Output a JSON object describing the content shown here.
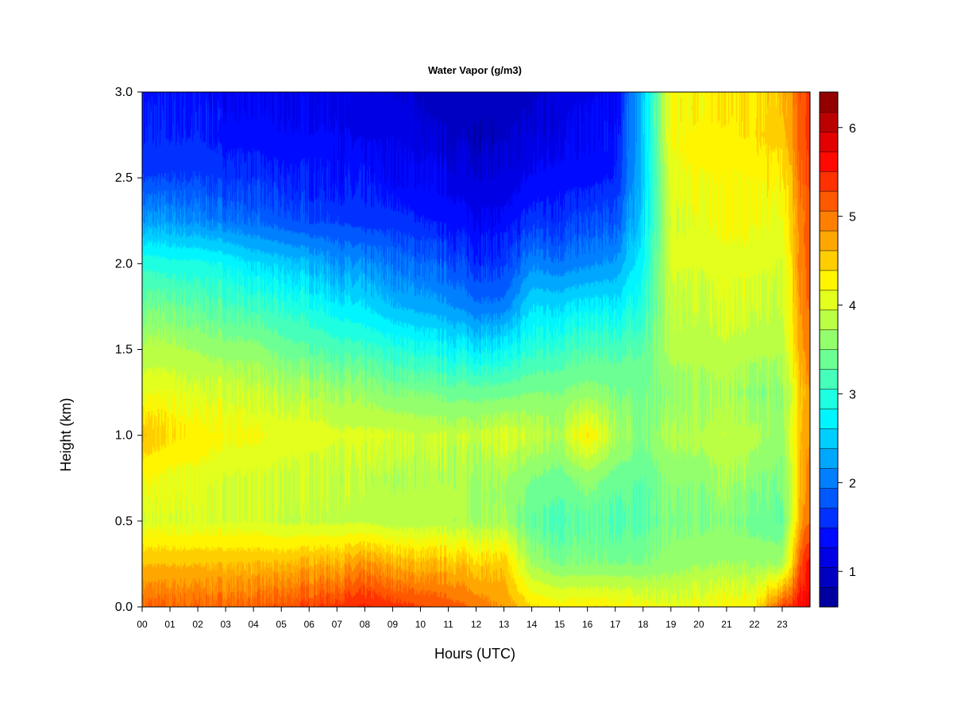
{
  "chart_data": {
    "type": "heatmap",
    "title": "Water Vapor (g/m3)",
    "xlabel": "Hours (UTC)",
    "ylabel": "Height (km)",
    "xlim": [
      0,
      24
    ],
    "ylim": [
      0,
      3
    ],
    "x_ticks": [
      "00",
      "01",
      "02",
      "03",
      "04",
      "05",
      "06",
      "07",
      "08",
      "09",
      "10",
      "11",
      "12",
      "13",
      "14",
      "15",
      "16",
      "17",
      "18",
      "19",
      "20",
      "21",
      "22",
      "23"
    ],
    "y_ticks": [
      "0.0",
      "0.5",
      "1.0",
      "1.5",
      "2.0",
      "2.5",
      "3.0"
    ],
    "colorbar": {
      "range": [
        0.6,
        6.4
      ],
      "ticks": [
        "1",
        "2",
        "3",
        "4",
        "5",
        "6"
      ],
      "levels": 26,
      "colors": [
        "#00008f",
        "#0000ff",
        "#0080ff",
        "#00ffff",
        "#80ff80",
        "#ffff00",
        "#ff8000",
        "#ff0000",
        "#800000"
      ]
    },
    "x": [
      0,
      1,
      2,
      3,
      4,
      5,
      6,
      7,
      8,
      9,
      10,
      11,
      12,
      13,
      14,
      15,
      16,
      17,
      18,
      19,
      20,
      21,
      22,
      23,
      23.8
    ],
    "y": [
      0,
      0.25,
      0.5,
      0.75,
      1.0,
      1.25,
      1.5,
      1.75,
      2.0,
      2.25,
      2.5,
      2.75,
      3.0
    ],
    "z": [
      [
        5.1,
        5.1,
        5.1,
        5.1,
        5.1,
        5.2,
        5.3,
        5.4,
        5.5,
        5.4,
        5.3,
        5.2,
        5.0,
        4.8,
        4.4,
        4.3,
        4.3,
        4.3,
        4.2,
        4.1,
        4.2,
        4.2,
        4.3,
        5.3,
        5.7
      ],
      [
        4.6,
        4.6,
        4.6,
        4.6,
        4.6,
        4.6,
        4.7,
        4.7,
        4.8,
        4.7,
        4.6,
        4.6,
        4.5,
        4.5,
        3.7,
        3.5,
        3.5,
        3.5,
        3.5,
        3.6,
        3.7,
        3.7,
        3.7,
        3.7,
        5.5
      ],
      [
        4.0,
        4.0,
        4.0,
        4.0,
        4.0,
        3.9,
        3.9,
        3.9,
        3.9,
        3.8,
        3.8,
        3.8,
        3.7,
        3.7,
        3.3,
        3.2,
        3.3,
        3.2,
        3.3,
        3.5,
        3.5,
        3.5,
        3.4,
        3.3,
        5.0
      ],
      [
        4.2,
        4.1,
        4.1,
        4.0,
        4.0,
        3.9,
        3.9,
        3.9,
        3.8,
        3.8,
        3.8,
        3.8,
        3.7,
        3.7,
        3.5,
        3.4,
        3.6,
        3.4,
        3.3,
        3.6,
        3.6,
        3.7,
        3.6,
        3.5,
        4.8
      ],
      [
        4.6,
        4.4,
        4.3,
        4.2,
        4.2,
        4.1,
        4.1,
        4.0,
        4.0,
        4.0,
        3.9,
        3.9,
        3.9,
        4.0,
        3.9,
        3.8,
        4.3,
        3.8,
        3.5,
        3.8,
        3.8,
        3.9,
        3.8,
        3.6,
        4.8
      ],
      [
        4.1,
        4.1,
        4.0,
        4.0,
        3.9,
        3.8,
        3.8,
        3.7,
        3.6,
        3.5,
        3.5,
        3.4,
        3.4,
        3.4,
        3.5,
        3.5,
        3.6,
        3.5,
        3.4,
        3.6,
        3.7,
        3.7,
        3.6,
        3.6,
        4.7
      ],
      [
        3.8,
        3.8,
        3.7,
        3.6,
        3.6,
        3.4,
        3.3,
        3.2,
        3.1,
        3.0,
        2.9,
        2.8,
        2.7,
        2.7,
        3.0,
        3.1,
        3.2,
        3.2,
        3.3,
        3.8,
        3.8,
        3.9,
        3.8,
        3.8,
        4.9
      ],
      [
        3.4,
        3.4,
        3.3,
        3.2,
        3.1,
        3.0,
        2.9,
        2.7,
        2.6,
        2.4,
        2.3,
        2.2,
        2.0,
        2.0,
        2.6,
        2.6,
        2.7,
        2.7,
        3.0,
        3.9,
        3.9,
        4.0,
        4.0,
        3.9,
        5.0
      ],
      [
        3.0,
        2.9,
        2.9,
        2.8,
        2.6,
        2.5,
        2.4,
        2.2,
        2.1,
        2.0,
        1.9,
        1.8,
        1.6,
        1.6,
        2.1,
        2.0,
        2.1,
        2.2,
        2.8,
        4.0,
        4.0,
        4.1,
        4.1,
        4.0,
        5.1
      ],
      [
        2.2,
        2.2,
        2.1,
        2.0,
        1.9,
        1.8,
        1.7,
        1.7,
        1.6,
        1.6,
        1.5,
        1.4,
        1.3,
        1.3,
        1.6,
        1.6,
        1.7,
        1.8,
        2.6,
        4.0,
        4.1,
        4.2,
        4.2,
        4.1,
        5.1
      ],
      [
        1.7,
        1.7,
        1.7,
        1.6,
        1.6,
        1.5,
        1.5,
        1.4,
        1.4,
        1.3,
        1.3,
        1.2,
        1.1,
        1.1,
        1.3,
        1.4,
        1.4,
        1.5,
        2.5,
        4.1,
        4.2,
        4.2,
        4.3,
        4.3,
        5.2
      ],
      [
        1.5,
        1.5,
        1.5,
        1.4,
        1.4,
        1.3,
        1.3,
        1.3,
        1.2,
        1.2,
        1.1,
        1.0,
        0.9,
        0.9,
        1.1,
        1.2,
        1.3,
        1.4,
        2.5,
        4.2,
        4.3,
        4.3,
        4.4,
        4.5,
        5.3
      ],
      [
        1.4,
        1.4,
        1.4,
        1.3,
        1.3,
        1.2,
        1.2,
        1.2,
        1.1,
        1.1,
        1.0,
        0.9,
        0.9,
        0.9,
        1.0,
        1.1,
        1.2,
        1.3,
        2.5,
        4.2,
        4.3,
        4.3,
        4.4,
        4.6,
        5.3
      ]
    ]
  }
}
